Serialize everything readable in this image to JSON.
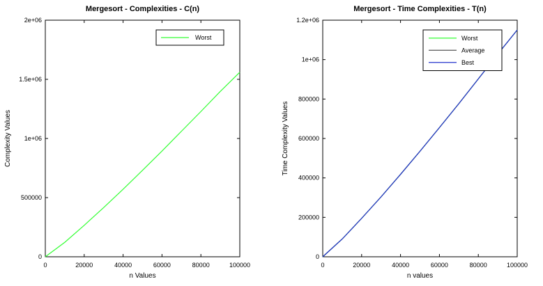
{
  "chart_data": [
    {
      "type": "line",
      "title": "Mergesort - Complexities - C(n)",
      "xlabel": "n Values",
      "ylabel": "Complexity Values",
      "xlim": [
        0,
        100000
      ],
      "ylim": [
        0,
        2000000
      ],
      "xticks": [
        0,
        20000,
        40000,
        60000,
        80000,
        100000
      ],
      "xtick_labels": [
        "0",
        "20000",
        "40000",
        "60000",
        "80000",
        "100000"
      ],
      "yticks": [
        0,
        500000,
        1000000,
        1500000,
        2000000
      ],
      "ytick_labels": [
        "0",
        "500000",
        "1e+06",
        "1.5e+06",
        "2e+06"
      ],
      "grid": false,
      "legend_position": "top-right",
      "x": [
        0,
        10000,
        20000,
        30000,
        40000,
        50000,
        60000,
        70000,
        80000,
        90000,
        100000
      ],
      "series": [
        {
          "name": "Worst",
          "color": "#33ff33",
          "values": [
            0,
            122000,
            266000,
            416000,
            571000,
            731000,
            894000,
            1061000,
            1228000,
            1398000,
            1560000
          ]
        }
      ]
    },
    {
      "type": "line",
      "title": "Mergesort - Time Complexities - T(n)",
      "xlabel": "n values",
      "ylabel": "Time Complexity Values",
      "xlim": [
        0,
        100000
      ],
      "ylim": [
        0,
        1200000
      ],
      "xticks": [
        0,
        20000,
        40000,
        60000,
        80000,
        100000
      ],
      "xtick_labels": [
        "0",
        "20000",
        "40000",
        "60000",
        "80000",
        "100000"
      ],
      "yticks": [
        0,
        200000,
        400000,
        600000,
        800000,
        1000000,
        1200000
      ],
      "ytick_labels": [
        "0",
        "200000",
        "400000",
        "600000",
        "800000",
        "1e+06",
        "1.2e+06"
      ],
      "grid": false,
      "legend_position": "top-right",
      "x": [
        0,
        10000,
        20000,
        30000,
        40000,
        50000,
        60000,
        70000,
        80000,
        90000,
        100000
      ],
      "series": [
        {
          "name": "Worst",
          "color": "#33ff33",
          "values": [
            0,
            90000,
            195000,
            304000,
            418000,
            535000,
            655000,
            777000,
            902000,
            1028000,
            1150000
          ]
        },
        {
          "name": "Average",
          "color": "#555555",
          "values": [
            0,
            90000,
            195000,
            304000,
            418000,
            535000,
            655000,
            777000,
            902000,
            1028000,
            1150000
          ]
        },
        {
          "name": "Best",
          "color": "#2233cc",
          "values": [
            0,
            90000,
            195000,
            304000,
            418000,
            535000,
            655000,
            777000,
            902000,
            1028000,
            1150000
          ]
        }
      ]
    }
  ]
}
